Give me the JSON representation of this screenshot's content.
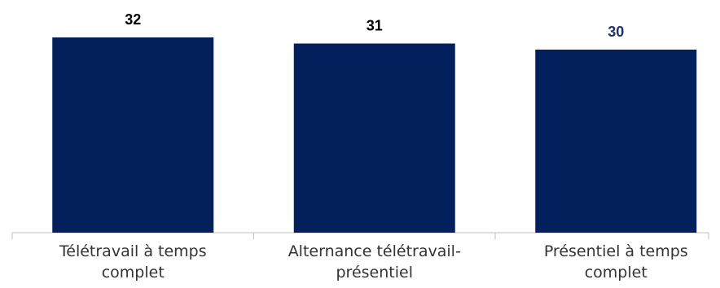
{
  "chart_data": {
    "type": "bar",
    "categories": [
      "Télétravail à temps complet",
      "Alternance télétravail-présentiel",
      "Présentiel à temps complet"
    ],
    "values": [
      32,
      31,
      30
    ],
    "color": "#03205c",
    "value_label_colors": [
      "#000000",
      "#000000",
      "#1f3370"
    ]
  }
}
